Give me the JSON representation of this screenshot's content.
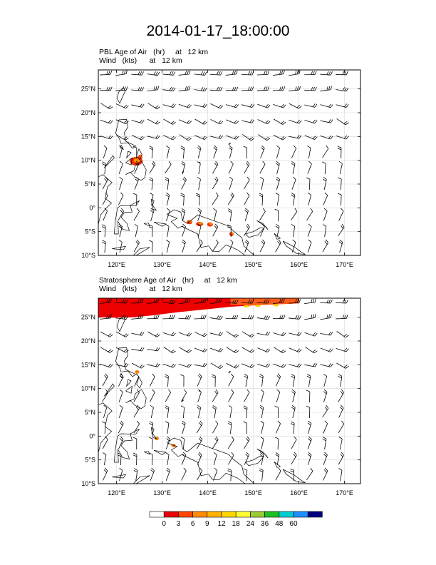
{
  "title": "2014-01-17_18:00:00",
  "panels": [
    {
      "field_label": "PBL Age of Air   (hr)     at   12 km",
      "wind_label": "Wind   (kts)      at   12 km",
      "field": "pbl",
      "lat_ticks": [
        "25°N",
        "20°N",
        "15°N",
        "10°N",
        "5°N",
        "0°",
        "5°S",
        "10°S"
      ],
      "lon_ticks": [
        "120°E",
        "130°E",
        "140°E",
        "150°E",
        "160°E",
        "170°E"
      ]
    },
    {
      "field_label": "Stratosphere Age of Air   (hr)     at   12 km",
      "wind_label": "Wind   (kts)      at   12 km",
      "field": "strat",
      "lat_ticks": [
        "25°N",
        "20°N",
        "15°N",
        "10°N",
        "5°N",
        "0°",
        "5°S",
        "10°S"
      ],
      "lon_ticks": [
        "120°E",
        "130°E",
        "140°E",
        "150°E",
        "160°E",
        "170°E"
      ]
    }
  ],
  "map_extent": {
    "lon_min": 116,
    "lon_max": 173.5,
    "lat_min": -10,
    "lat_max": 29
  },
  "colorbar": {
    "labels": [
      "0",
      "3",
      "6",
      "9",
      "12",
      "18",
      "24",
      "36",
      "48",
      "60"
    ],
    "colors": [
      "#ffffff",
      "#e8000b",
      "#ff4500",
      "#ff8c00",
      "#ffb300",
      "#ffd700",
      "#ffff33",
      "#9acd32",
      "#1fbf1f",
      "#00ced1",
      "#1e8fff",
      "#000080"
    ]
  }
}
